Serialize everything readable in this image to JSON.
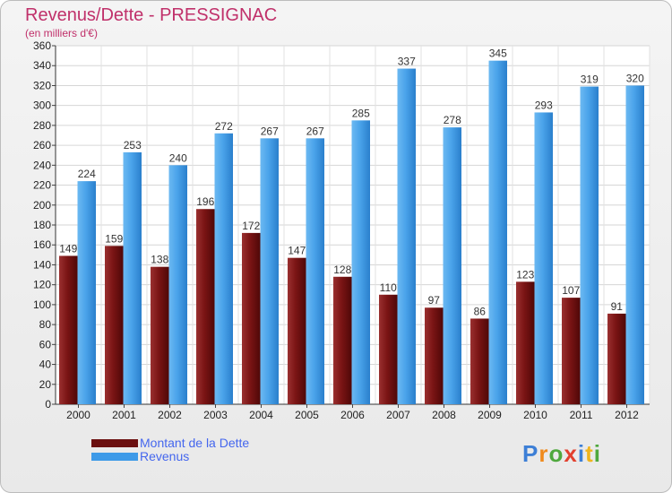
{
  "title": "Revenus/Dette - PRESSIGNAC",
  "subtitle": "(en milliers d'€)",
  "logo_text": "Proxiti",
  "colors": {
    "dette": "#6b0f0f",
    "revenus": "#3d9ae8",
    "title": "#c0306a",
    "legend_text": "#4466ee"
  },
  "legend": [
    {
      "label": "Montant de la Dette",
      "color": "#6b0f0f"
    },
    {
      "label": "Revenus",
      "color": "#3d9ae8"
    }
  ],
  "chart_data": {
    "type": "bar",
    "title": "Revenus/Dette - PRESSIGNAC",
    "subtitle": "(en milliers d'€)",
    "xlabel": "",
    "ylabel": "",
    "ylim": [
      0,
      360
    ],
    "ytick_step": 20,
    "grid": true,
    "legend_position": "bottom-left",
    "categories": [
      "2000",
      "2001",
      "2002",
      "2003",
      "2004",
      "2005",
      "2006",
      "2007",
      "2008",
      "2009",
      "2010",
      "2011",
      "2012"
    ],
    "series": [
      {
        "name": "Montant de la Dette",
        "values": [
          149,
          159,
          138,
          196,
          172,
          147,
          128,
          110,
          97,
          86,
          123,
          107,
          91
        ]
      },
      {
        "name": "Revenus",
        "values": [
          224,
          253,
          240,
          272,
          267,
          267,
          285,
          337,
          278,
          345,
          293,
          319,
          320
        ]
      }
    ]
  }
}
